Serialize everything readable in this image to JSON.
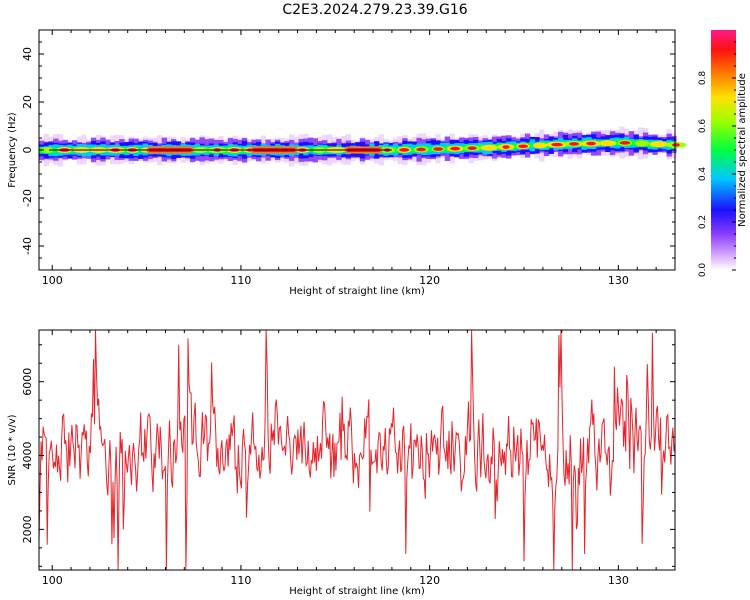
{
  "title": "C2E3.2024.279.23.39.G16",
  "chart_data": [
    {
      "type": "heatmap",
      "xlabel": "Height of straight line (km)",
      "ylabel": "Frequency (Hz)",
      "xlim": [
        99.3,
        133.0
      ],
      "ylim": [
        -50,
        50
      ],
      "xticks": [
        100,
        110,
        120,
        130
      ],
      "yticks": [
        -40,
        -20,
        0,
        20,
        40
      ],
      "colorbar": {
        "label": "Normalized spectral amplitude",
        "range": [
          0.0,
          1.0
        ],
        "ticks": [
          "0.0",
          "0.2",
          "0.4",
          "0.6",
          "0.8"
        ],
        "colormap": "rainbow (white/violet-blue-cyan-green-yellow-orange-red-magenta)"
      },
      "ridge_center_frequency": [
        {
          "x": 100,
          "y": 0.0
        },
        {
          "x": 110,
          "y": 0.0
        },
        {
          "x": 118,
          "y": 0.0
        },
        {
          "x": 123,
          "y": 1.0
        },
        {
          "x": 127,
          "y": 2.5
        },
        {
          "x": 130,
          "y": 3.0
        },
        {
          "x": 133,
          "y": 2.0
        }
      ],
      "ridge_halfwidth_hz": 4,
      "strong_segments_x": [
        [
          105.0,
          107.5
        ],
        [
          110.5,
          113.0
        ],
        [
          115.5,
          117.5
        ]
      ]
    },
    {
      "type": "line",
      "xlabel": "Height of straight line (km)",
      "ylabel": "SNR (10 * v/v)",
      "xlim": [
        99.3,
        133.0
      ],
      "ylim": [
        900,
        7400
      ],
      "xticks": [
        100,
        110,
        120,
        130
      ],
      "yticks": [
        2000,
        4000,
        6000
      ],
      "color": "#e8232a",
      "series_summary": {
        "mean": 4200,
        "min": 900,
        "max": 7400,
        "points": 620
      }
    }
  ]
}
